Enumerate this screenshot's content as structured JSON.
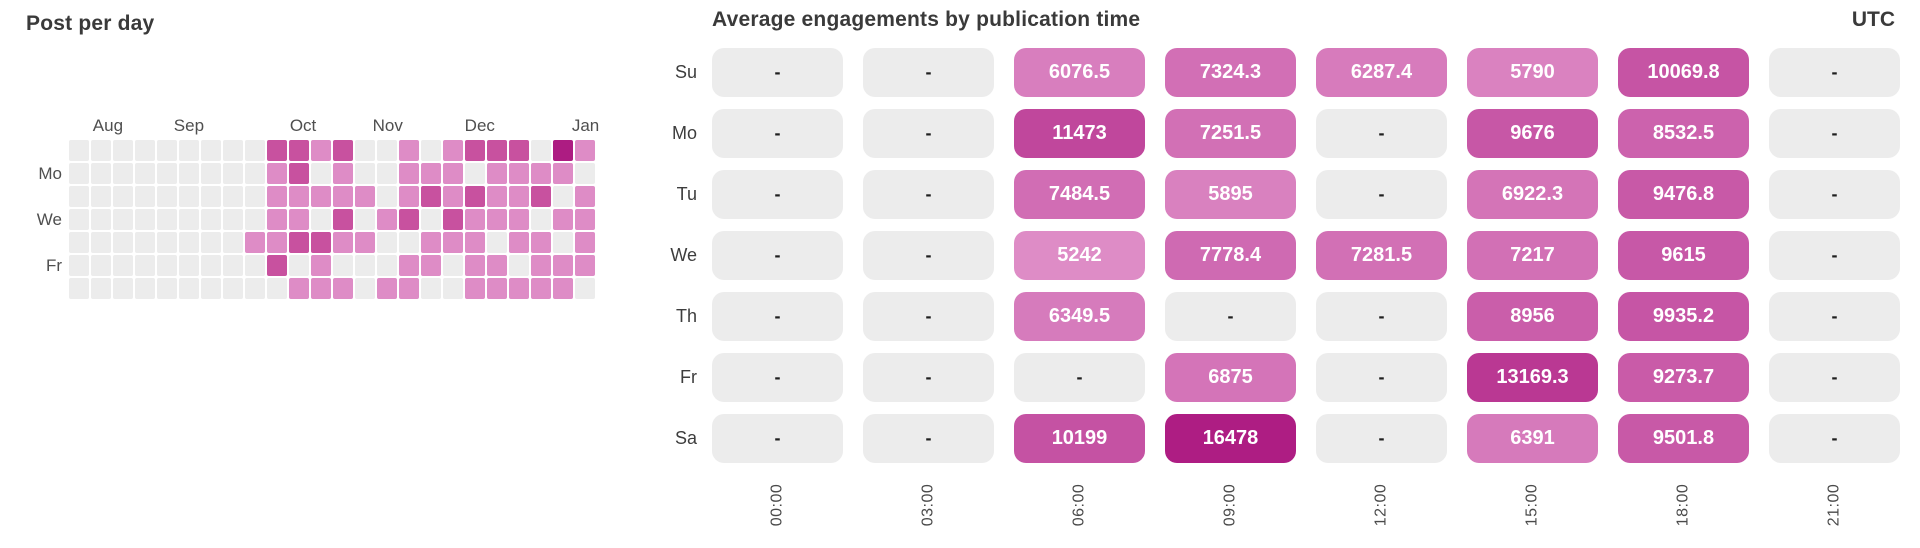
{
  "colors": {
    "cell_empty": "#ECECEC",
    "calendar_level_1": "#DE8CC6",
    "calendar_level_2": "#C8519F",
    "calendar_level_3": "#AD1C82",
    "value_min_color": "#DE8CC6",
    "value_max_color": "#AE1D83",
    "title_text": "#3A3A3A",
    "pill_value_text": "#FFFFFF",
    "empty_cell_text": "#1F1F1F"
  },
  "empty_cell_text": "-",
  "chart_data": [
    {
      "type": "heatmap",
      "title": "Post per day",
      "month_labels": [
        "Aug",
        "Sep",
        "Oct",
        "Nov",
        "Dec",
        "Jan"
      ],
      "day_axis_labels": [
        {
          "label": "Mo",
          "row": 1
        },
        {
          "label": "We",
          "row": 3
        },
        {
          "label": "Fr",
          "row": 5
        }
      ],
      "rows": [
        "Su",
        "Mo",
        "Tu",
        "We",
        "Th",
        "Fr",
        "Sa"
      ],
      "legend": "levels: . = no posts, 1 = low, 2 = medium, 3 = high",
      "grid": [
        ".........2212..1.1222.31",
        ".........12.1..111.1111.",
        ".........11111.1212112.1",
        ".........11.2.12.2111.11",
        "........112211..111.11.1",
        ".........2.1...11.11.111",
        "..........111.11..11111."
      ]
    },
    {
      "type": "heatmap",
      "title": "Average engagements by publication time",
      "timezone": "UTC",
      "rows": [
        "Su",
        "Mo",
        "Tu",
        "We",
        "Th",
        "Fr",
        "Sa"
      ],
      "columns": [
        "00:00",
        "03:00",
        "06:00",
        "09:00",
        "12:00",
        "15:00",
        "18:00",
        "21:00"
      ],
      "value_range": [
        5242,
        16478
      ],
      "values": [
        [
          null,
          null,
          6076.5,
          7324.3,
          6287.4,
          5790,
          10069.8,
          null
        ],
        [
          null,
          null,
          11473,
          7251.5,
          null,
          9676,
          8532.5,
          null
        ],
        [
          null,
          null,
          7484.5,
          5895,
          null,
          6922.3,
          9476.8,
          null
        ],
        [
          null,
          null,
          5242,
          7778.4,
          7281.5,
          7217,
          9615,
          null
        ],
        [
          null,
          null,
          6349.5,
          null,
          null,
          8956,
          9935.2,
          null
        ],
        [
          null,
          null,
          null,
          6875,
          null,
          13169.3,
          9273.7,
          null
        ],
        [
          null,
          null,
          10199,
          16478,
          null,
          6391,
          9501.8,
          null
        ]
      ]
    }
  ]
}
